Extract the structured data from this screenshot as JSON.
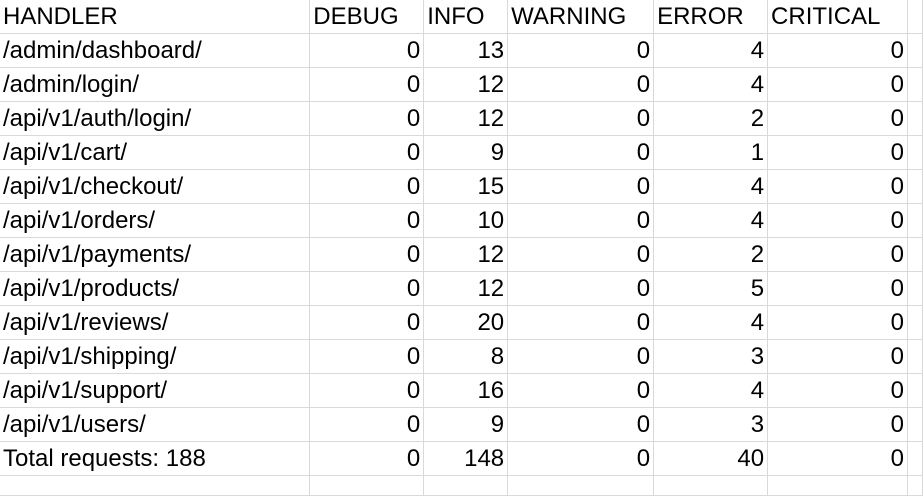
{
  "columns": [
    "HANDLER",
    "DEBUG",
    "INFO",
    "WARNING",
    "ERROR",
    "CRITICAL"
  ],
  "rows": [
    [
      "/admin/dashboard/",
      "0",
      "13",
      "0",
      "4",
      "0"
    ],
    [
      "/admin/login/",
      "0",
      "12",
      "0",
      "4",
      "0"
    ],
    [
      "/api/v1/auth/login/",
      "0",
      "12",
      "0",
      "2",
      "0"
    ],
    [
      "/api/v1/cart/",
      "0",
      "9",
      "0",
      "1",
      "0"
    ],
    [
      "/api/v1/checkout/",
      "0",
      "15",
      "0",
      "4",
      "0"
    ],
    [
      "/api/v1/orders/",
      "0",
      "10",
      "0",
      "4",
      "0"
    ],
    [
      "/api/v1/payments/",
      "0",
      "12",
      "0",
      "2",
      "0"
    ],
    [
      "/api/v1/products/",
      "0",
      "12",
      "0",
      "5",
      "0"
    ],
    [
      "/api/v1/reviews/",
      "0",
      "20",
      "0",
      "4",
      "0"
    ],
    [
      "/api/v1/shipping/",
      "0",
      "8",
      "0",
      "3",
      "0"
    ],
    [
      "/api/v1/support/",
      "0",
      "16",
      "0",
      "4",
      "0"
    ],
    [
      "/api/v1/users/",
      "0",
      "9",
      "0",
      "3",
      "0"
    ]
  ],
  "total": [
    "Total requests: 188",
    "0",
    "148",
    "0",
    "40",
    "0"
  ]
}
